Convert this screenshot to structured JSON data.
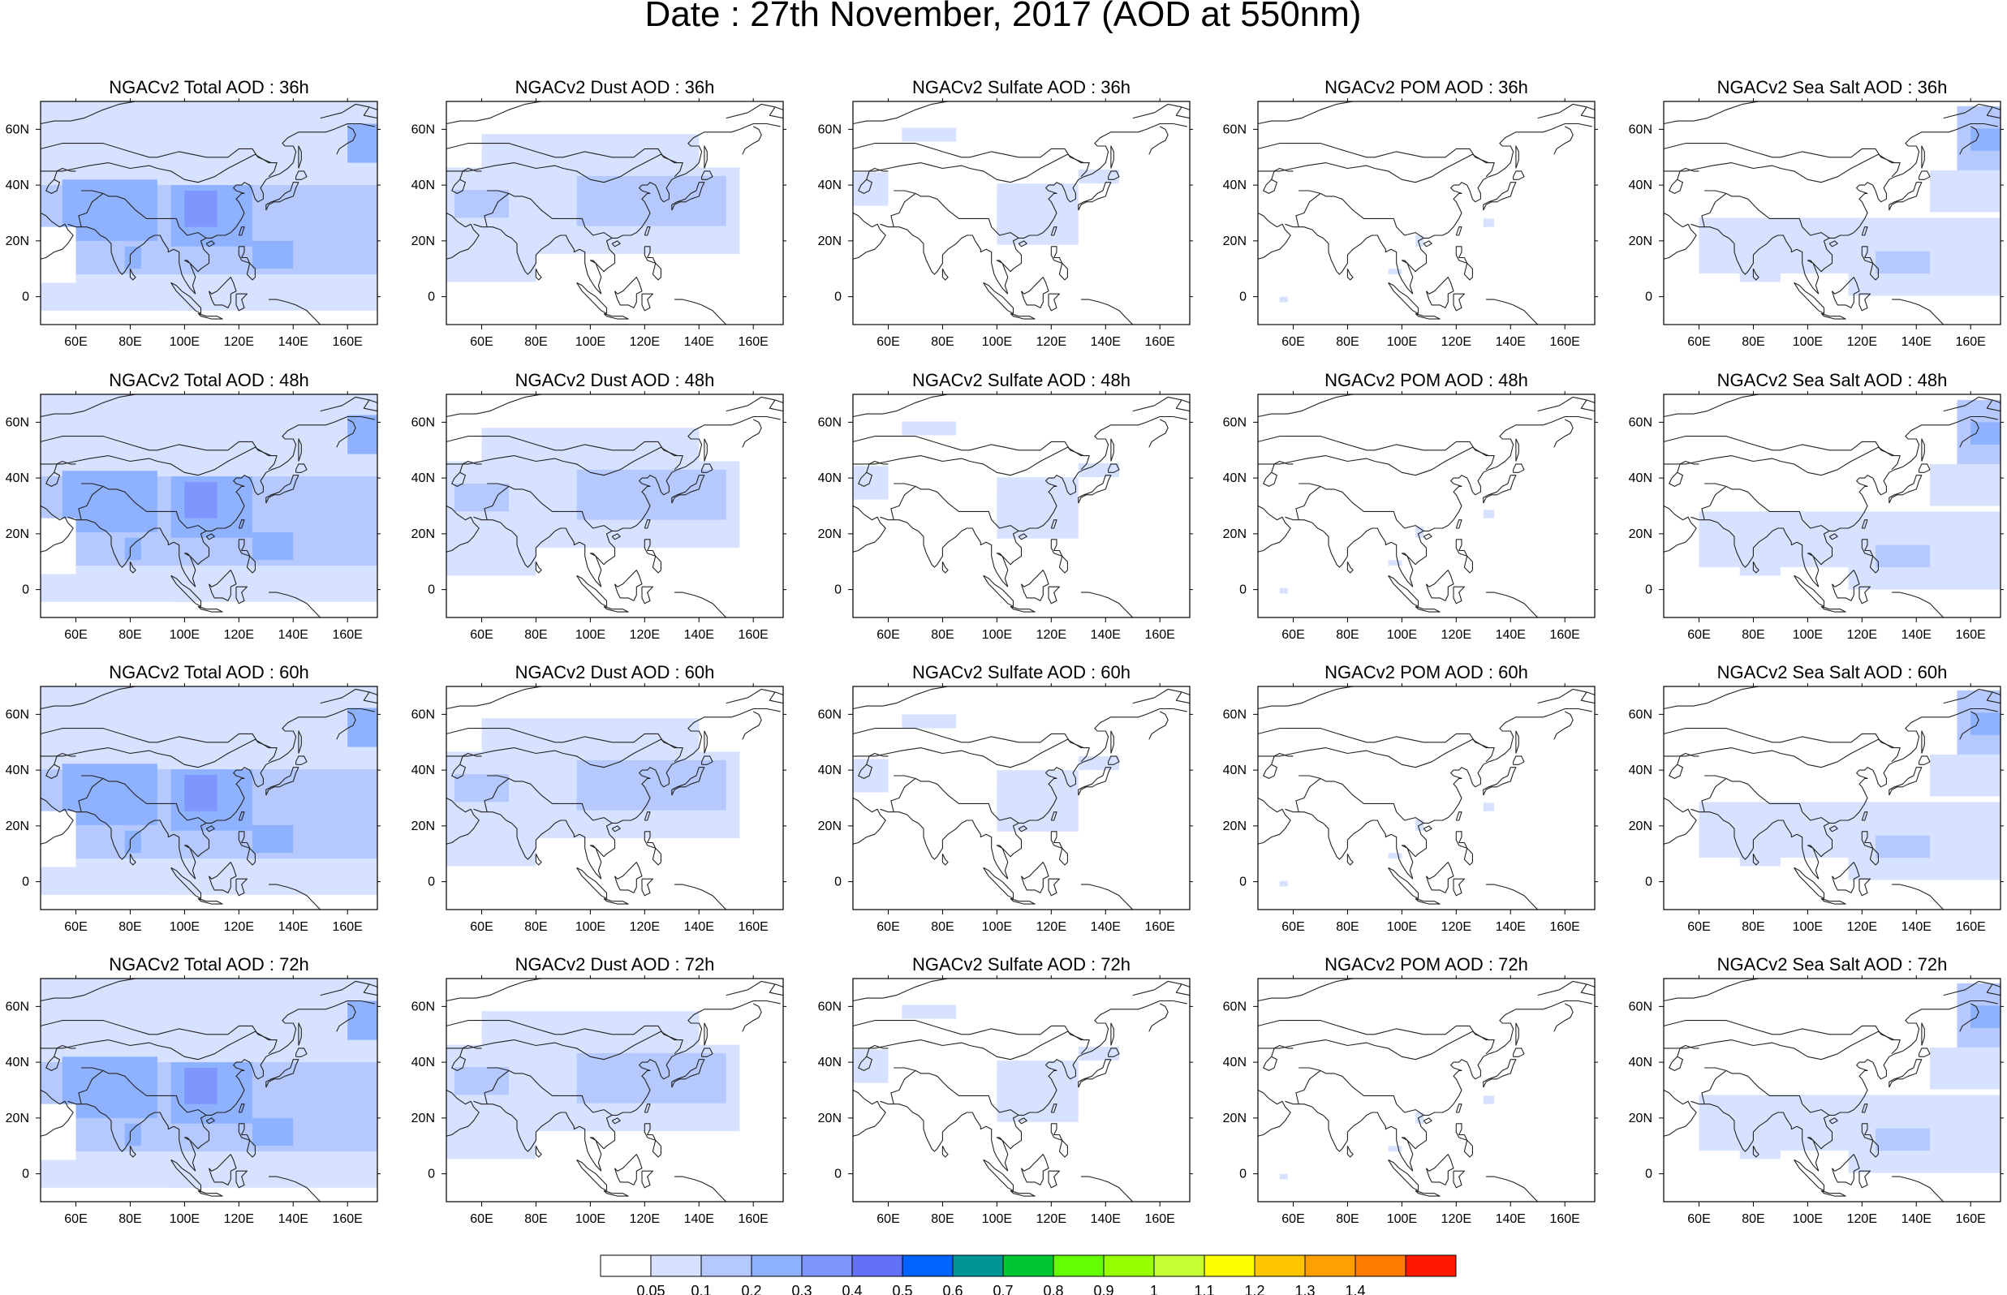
{
  "title": "Date : 27th November, 2017 (AOD at 550nm)",
  "colorbar": {
    "colors": [
      "#ffffff",
      "#d6e2ff",
      "#b5c9ff",
      "#8eb2ff",
      "#7f96ff",
      "#6370f8",
      "#0063ff",
      "#009696",
      "#00c633",
      "#63ff00",
      "#96ff00",
      "#c6ff33",
      "#ffff00",
      "#ffc600",
      "#ffa000",
      "#ff7c00",
      "#ff1900"
    ],
    "labels": [
      "0.05",
      "0.1",
      "0.2",
      "0.3",
      "0.4",
      "0.5",
      "0.6",
      "0.7",
      "0.8",
      "0.9",
      "1",
      "1.1",
      "1.2",
      "1.3",
      "1.4"
    ]
  },
  "axes": {
    "x_ticks": [
      "60E",
      "80E",
      "100E",
      "120E",
      "140E",
      "160E"
    ],
    "y_ticks": [
      "60N",
      "40N",
      "20N",
      "0"
    ]
  },
  "panels": [
    {
      "title": "NGACv2 Total AOD : 36h",
      "species": "total"
    },
    {
      "title": "NGACv2 Dust AOD : 36h",
      "species": "dust"
    },
    {
      "title": "NGACv2 Sulfate AOD : 36h",
      "species": "sulfate"
    },
    {
      "title": "NGACv2 POM AOD : 36h",
      "species": "pom"
    },
    {
      "title": "NGACv2 Sea Salt AOD : 36h",
      "species": "seasalt"
    },
    {
      "title": "NGACv2 Total AOD : 48h",
      "species": "total"
    },
    {
      "title": "NGACv2 Dust AOD : 48h",
      "species": "dust"
    },
    {
      "title": "NGACv2 Sulfate AOD : 48h",
      "species": "sulfate"
    },
    {
      "title": "NGACv2 POM AOD : 48h",
      "species": "pom"
    },
    {
      "title": "NGACv2 Sea Salt AOD : 48h",
      "species": "seasalt"
    },
    {
      "title": "NGACv2 Total AOD : 60h",
      "species": "total"
    },
    {
      "title": "NGACv2 Dust AOD : 60h",
      "species": "dust"
    },
    {
      "title": "NGACv2 Sulfate AOD : 60h",
      "species": "sulfate"
    },
    {
      "title": "NGACv2 POM AOD : 60h",
      "species": "pom"
    },
    {
      "title": "NGACv2 Sea Salt AOD : 60h",
      "species": "seasalt"
    },
    {
      "title": "NGACv2 Total AOD : 72h",
      "species": "total"
    },
    {
      "title": "NGACv2 Dust AOD : 72h",
      "species": "dust"
    },
    {
      "title": "NGACv2 Sulfate AOD : 72h",
      "species": "sulfate"
    },
    {
      "title": "NGACv2 POM AOD : 72h",
      "species": "pom"
    },
    {
      "title": "NGACv2 Sea Salt  AOD : 72h",
      "species": "seasalt"
    }
  ]
}
